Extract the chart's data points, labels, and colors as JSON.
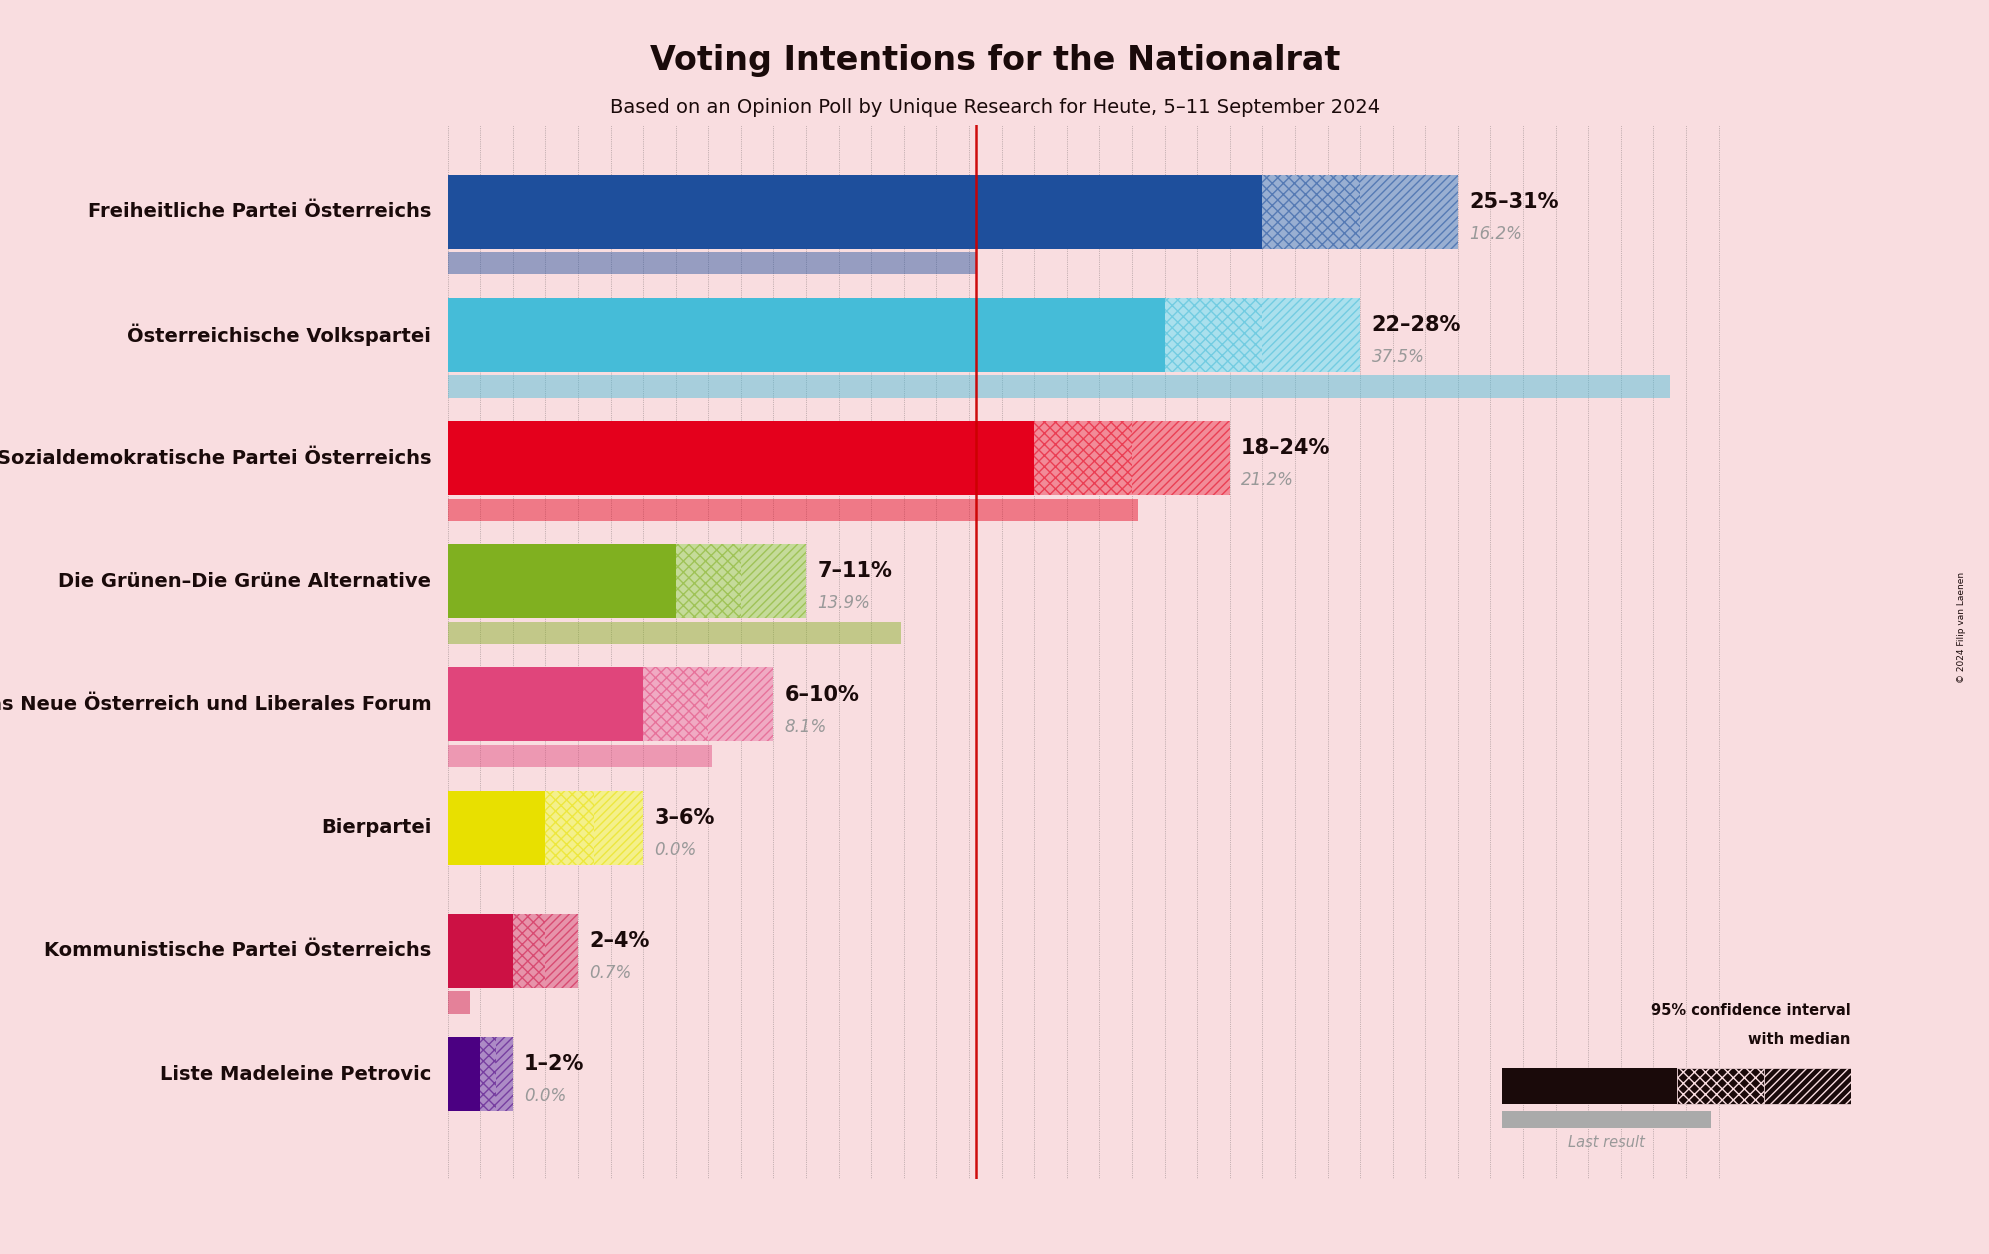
{
  "title": "Voting Intentions for the Nationalrat",
  "subtitle": "Based on an Opinion Poll by Unique Research for Heute, 5–11 September 2024",
  "copyright": "© 2024 Filip van Laenen",
  "background_color": "#f9dde0",
  "parties": [
    {
      "name": "Freiheitliche Partei Österreichs",
      "low": 25,
      "high": 31,
      "median": 28,
      "last": 16.2,
      "color": "#1e4f9c",
      "label": "25–31%",
      "last_label": "16.2%"
    },
    {
      "name": "Österreichische Volkspartei",
      "low": 22,
      "high": 28,
      "median": 25,
      "last": 37.5,
      "color": "#45bcd8",
      "label": "22–28%",
      "last_label": "37.5%"
    },
    {
      "name": "Sozialdemokratische Partei Österreichs",
      "low": 18,
      "high": 24,
      "median": 21,
      "last": 21.2,
      "color": "#e4001c",
      "label": "18–24%",
      "last_label": "21.2%"
    },
    {
      "name": "Die Grünen–Die Grüne Alternative",
      "low": 7,
      "high": 11,
      "median": 9,
      "last": 13.9,
      "color": "#80b020",
      "label": "7–11%",
      "last_label": "13.9%"
    },
    {
      "name": "NEOS–Das Neue Österreich und Liberales Forum",
      "low": 6,
      "high": 10,
      "median": 8,
      "last": 8.1,
      "color": "#e0457b",
      "label": "6–10%",
      "last_label": "8.1%"
    },
    {
      "name": "Bierpartei",
      "low": 3,
      "high": 6,
      "median": 4.5,
      "last": 0.0,
      "color": "#e8e000",
      "label": "3–6%",
      "last_label": "0.0%"
    },
    {
      "name": "Kommunistische Partei Österreichs",
      "low": 2,
      "high": 4,
      "median": 3,
      "last": 0.7,
      "color": "#cc1144",
      "label": "2–4%",
      "last_label": "0.7%"
    },
    {
      "name": "Liste Madeleine Petrovic",
      "low": 1,
      "high": 2,
      "median": 1.5,
      "last": 0.0,
      "color": "#4b0082",
      "label": "1–2%",
      "last_label": "0.0%"
    }
  ],
  "xmax": 40,
  "red_line_x": 16.2,
  "text_color": "#1a0a0a",
  "gray_color": "#999999",
  "bar_height": 0.6,
  "last_bar_height": 0.18,
  "last_bar_alpha": 0.45,
  "title_fontsize": 24,
  "subtitle_fontsize": 14,
  "label_fontsize": 15,
  "last_label_fontsize": 12,
  "party_fontsize": 14
}
